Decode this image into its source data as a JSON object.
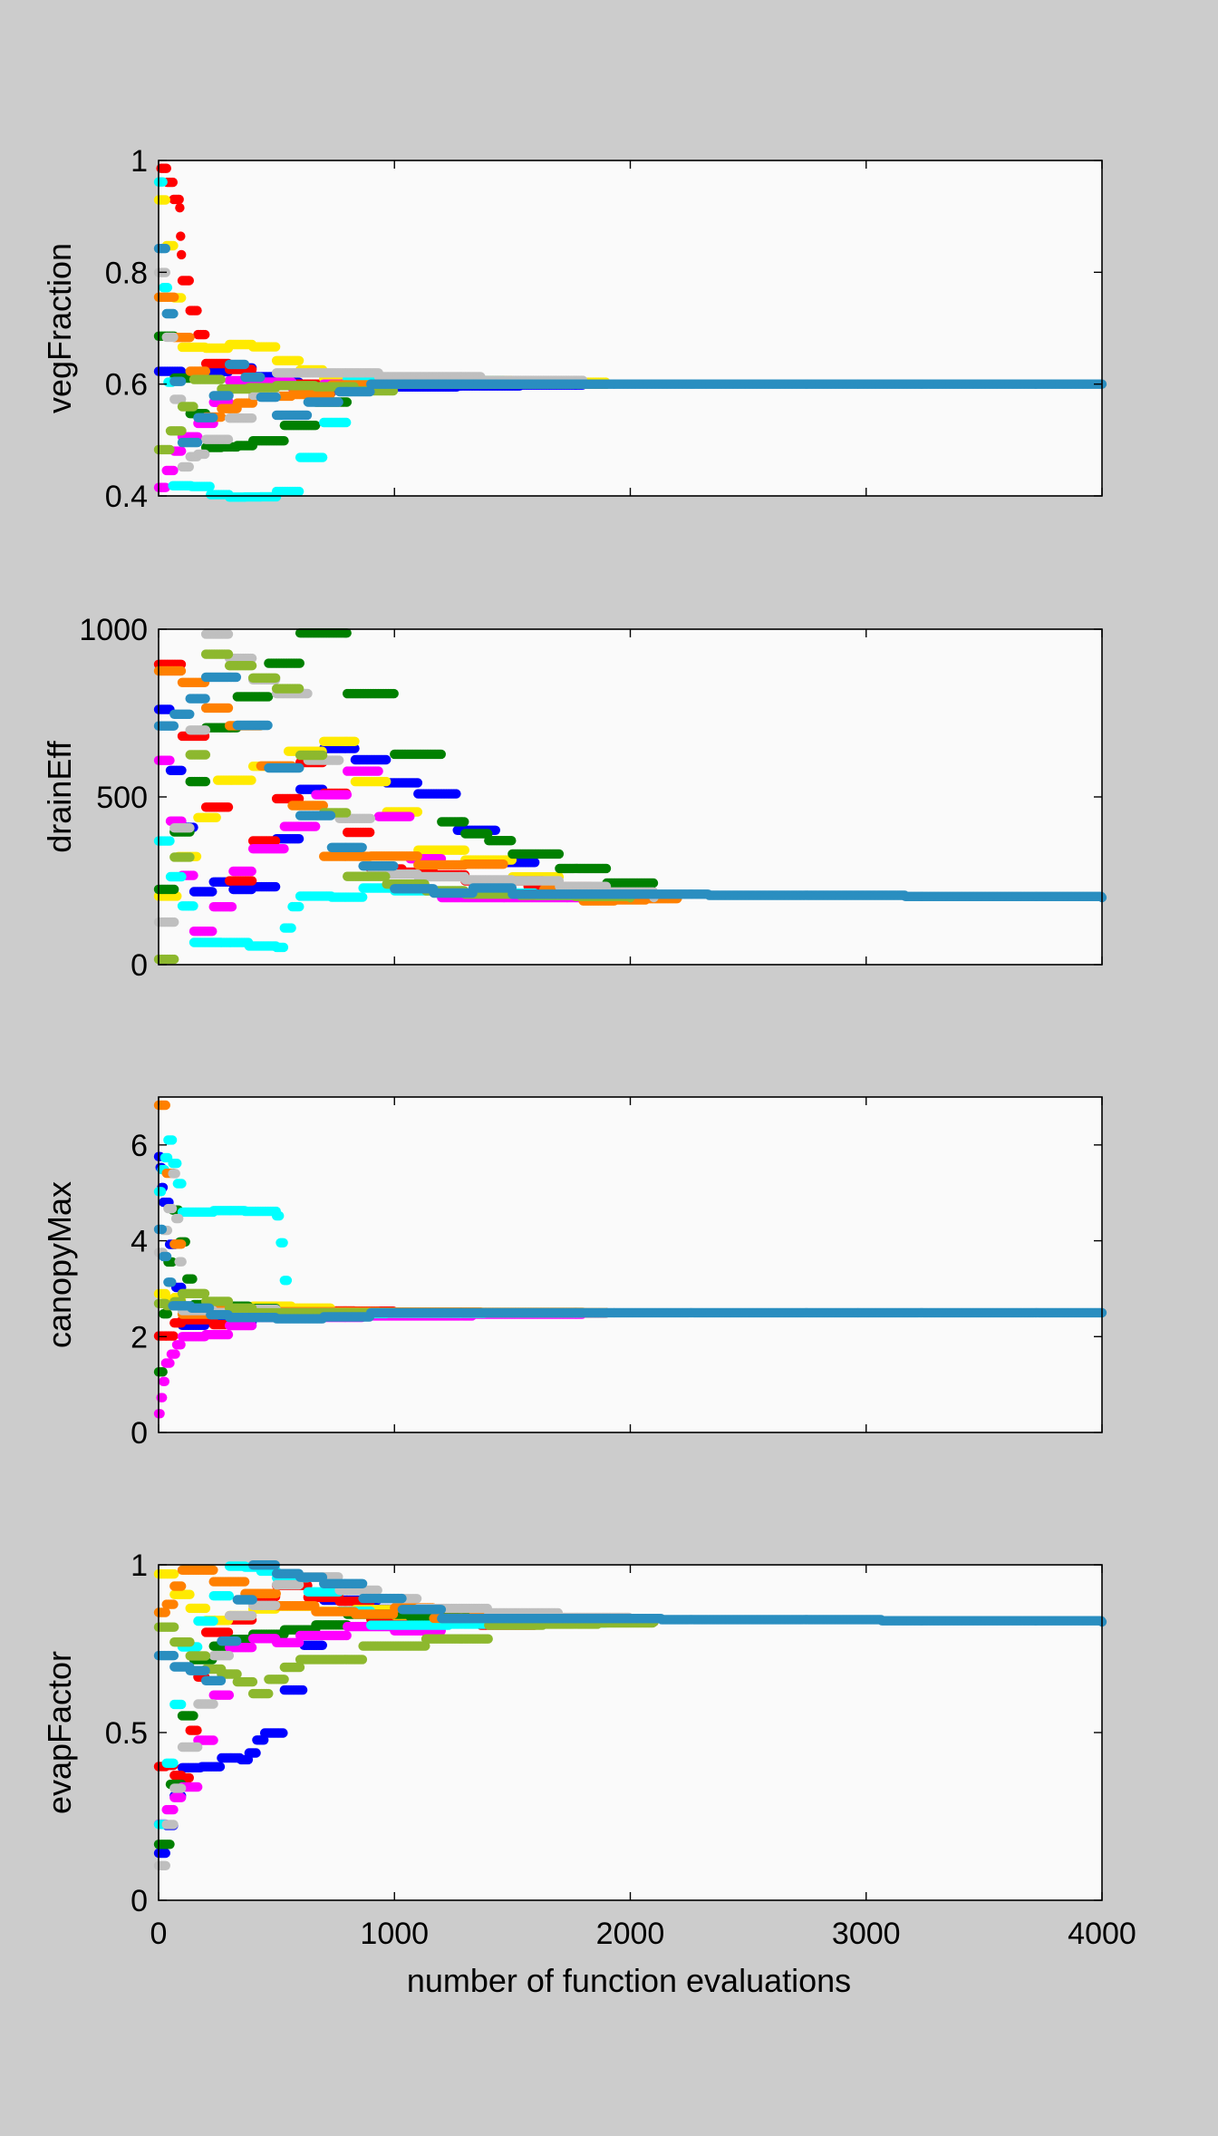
{
  "figure": {
    "background": "#cccccc",
    "axes_background": "#fafafa",
    "series_colors": [
      "#0000ff",
      "#ff0000",
      "#ffea00",
      "#008000",
      "#ff00ff",
      "#00ffff",
      "#ff8000",
      "#bfbfbf",
      "#8db82e",
      "#2a8ec0"
    ]
  },
  "chart_data": [
    {
      "type": "scatter",
      "ylabel": "vegFraction",
      "xlim": [
        0,
        4000
      ],
      "ylim": [
        0.4,
        1
      ],
      "xticks": [
        0,
        1000,
        2000,
        3000,
        4000
      ],
      "yticks": [
        0.4,
        0.6,
        0.8,
        1
      ],
      "yticklabels": [
        "0.4",
        "0.6",
        "0.8",
        "1"
      ],
      "show_xticklabels": false,
      "converged_value": 0.6,
      "convergence_evaluation": 1900,
      "series": [
        {
          "values": [
            [
              0,
              0.62
            ],
            [
              300,
              0.62
            ],
            [
              600,
              0.59
            ],
            [
              1000,
              0.595
            ],
            [
              1800,
              0.6
            ]
          ]
        },
        {
          "values": [
            [
              10,
              0.98
            ],
            [
              90,
              0.91
            ],
            [
              100,
              0.79
            ],
            [
              200,
              0.63
            ],
            [
              500,
              0.6
            ],
            [
              1800,
              0.6
            ]
          ]
        },
        {
          "values": [
            [
              0,
              0.93
            ],
            [
              100,
              0.67
            ],
            [
              400,
              0.66
            ],
            [
              700,
              0.61
            ],
            [
              1900,
              0.6
            ]
          ]
        },
        {
          "values": [
            [
              0,
              0.68
            ],
            [
              200,
              0.49
            ],
            [
              400,
              0.49
            ],
            [
              800,
              0.6
            ],
            [
              1800,
              0.6
            ]
          ]
        },
        {
          "values": [
            [
              0,
              0.42
            ],
            [
              100,
              0.5
            ],
            [
              300,
              0.6
            ],
            [
              700,
              0.6
            ],
            [
              1800,
              0.6
            ]
          ]
        },
        {
          "values": [
            [
              0,
              0.96
            ],
            [
              60,
              0.42
            ],
            [
              300,
              0.4
            ],
            [
              500,
              0.4
            ],
            [
              800,
              0.61
            ],
            [
              1800,
              0.6
            ]
          ]
        },
        {
          "values": [
            [
              0,
              0.76
            ],
            [
              200,
              0.55
            ],
            [
              400,
              0.58
            ],
            [
              900,
              0.6
            ],
            [
              1900,
              0.6
            ]
          ]
        },
        {
          "values": [
            [
              0,
              0.8
            ],
            [
              100,
              0.45
            ],
            [
              200,
              0.5
            ],
            [
              500,
              0.62
            ],
            [
              1800,
              0.6
            ]
          ]
        },
        {
          "values": [
            [
              0,
              0.48
            ],
            [
              150,
              0.6
            ],
            [
              500,
              0.59
            ],
            [
              1000,
              0.6
            ],
            [
              1900,
              0.6
            ]
          ]
        },
        {
          "values": [
            [
              0,
              0.84
            ],
            [
              100,
              0.49
            ],
            [
              300,
              0.63
            ],
            [
              500,
              0.55
            ],
            [
              900,
              0.6
            ],
            [
              4000,
              0.6
            ]
          ]
        }
      ]
    },
    {
      "type": "scatter",
      "ylabel": "drainEff",
      "xlim": [
        0,
        4000
      ],
      "ylim": [
        0,
        1000
      ],
      "xticks": [
        0,
        1000,
        2000,
        3000,
        4000
      ],
      "yticks": [
        0,
        500,
        1000
      ],
      "yticklabels": [
        "0",
        "500",
        "1000"
      ],
      "show_xticklabels": false,
      "converged_value": 200,
      "convergence_evaluation": 2500,
      "series": [
        {
          "values": [
            [
              0,
              750
            ],
            [
              150,
              230
            ],
            [
              400,
              240
            ],
            [
              700,
              650
            ],
            [
              1100,
              500
            ],
            [
              1600,
              210
            ],
            [
              2200,
              200
            ]
          ]
        },
        {
          "values": [
            [
              0,
              910
            ],
            [
              300,
              240
            ],
            [
              600,
              600
            ],
            [
              900,
              300
            ],
            [
              1300,
              250
            ],
            [
              2100,
              200
            ]
          ]
        },
        {
          "values": [
            [
              0,
              200
            ],
            [
              250,
              550
            ],
            [
              700,
              660
            ],
            [
              1100,
              350
            ],
            [
              1700,
              220
            ],
            [
              2200,
              200
            ]
          ]
        },
        {
          "values": [
            [
              0,
              230
            ],
            [
              200,
              710
            ],
            [
              600,
              1000
            ],
            [
              1200,
              420
            ],
            [
              1500,
              330
            ],
            [
              2100,
              200
            ]
          ]
        },
        {
          "values": [
            [
              0,
              600
            ],
            [
              150,
              100
            ],
            [
              400,
              350
            ],
            [
              800,
              580
            ],
            [
              1200,
              200
            ],
            [
              2000,
              200
            ]
          ]
        },
        {
          "values": [
            [
              0,
              380
            ],
            [
              150,
              60
            ],
            [
              500,
              60
            ],
            [
              600,
              210
            ],
            [
              1000,
              220
            ],
            [
              1900,
              200
            ]
          ]
        },
        {
          "values": [
            [
              0,
              880
            ],
            [
              300,
              720
            ],
            [
              700,
              330
            ],
            [
              1300,
              290
            ],
            [
              1800,
              190
            ],
            [
              2200,
              200
            ]
          ]
        },
        {
          "values": [
            [
              0,
              120
            ],
            [
              200,
              980
            ],
            [
              500,
              800
            ],
            [
              900,
              270
            ],
            [
              1500,
              250
            ],
            [
              2100,
              200
            ]
          ]
        },
        {
          "values": [
            [
              0,
              10
            ],
            [
              200,
              930
            ],
            [
              500,
              820
            ],
            [
              800,
              250
            ],
            [
              1300,
              210
            ],
            [
              2000,
              200
            ]
          ]
        },
        {
          "values": [
            [
              0,
              700
            ],
            [
              200,
              860
            ],
            [
              600,
              430
            ],
            [
              1000,
              230
            ],
            [
              1500,
              210
            ],
            [
              4000,
              200
            ]
          ]
        }
      ]
    },
    {
      "type": "scatter",
      "ylabel": "canopyMax",
      "xlim": [
        0,
        4000
      ],
      "ylim": [
        0,
        7
      ],
      "xticks": [
        0,
        1000,
        2000,
        3000,
        4000
      ],
      "yticks": [
        0,
        2,
        4,
        6
      ],
      "yticklabels": [
        "0",
        "2",
        "4",
        "6"
      ],
      "show_xticklabels": false,
      "converged_value": 2.5,
      "convergence_evaluation": 2000,
      "series": [
        {
          "values": [
            [
              0,
              5.8
            ],
            [
              20,
              4.7
            ],
            [
              100,
              2.2
            ],
            [
              400,
              2.4
            ],
            [
              900,
              2.48
            ],
            [
              1900,
              2.5
            ]
          ]
        },
        {
          "values": [
            [
              0,
              2.0
            ],
            [
              100,
              2.3
            ],
            [
              500,
              2.45
            ],
            [
              1000,
              2.5
            ],
            [
              1900,
              2.5
            ]
          ]
        },
        {
          "values": [
            [
              0,
              2.8
            ],
            [
              100,
              2.7
            ],
            [
              400,
              2.55
            ],
            [
              900,
              2.5
            ],
            [
              1900,
              2.5
            ]
          ]
        },
        {
          "values": [
            [
              0,
              1.3
            ],
            [
              60,
              4.6
            ],
            [
              150,
              2.6
            ],
            [
              500,
              2.5
            ],
            [
              1800,
              2.5
            ]
          ]
        },
        {
          "values": [
            [
              0,
              0.45
            ],
            [
              30,
              1.5
            ],
            [
              100,
              2.0
            ],
            [
              400,
              2.4
            ],
            [
              1800,
              2.5
            ]
          ]
        },
        {
          "values": [
            [
              0,
              5.0
            ],
            [
              40,
              6.2
            ],
            [
              100,
              4.6
            ],
            [
              500,
              4.6
            ],
            [
              550,
              2.48
            ],
            [
              1800,
              2.5
            ]
          ]
        },
        {
          "values": [
            [
              0,
              6.8
            ],
            [
              100,
              2.55
            ],
            [
              500,
              2.52
            ],
            [
              1800,
              2.5
            ]
          ]
        },
        {
          "values": [
            [
              0,
              3.7
            ],
            [
              60,
              5.3
            ],
            [
              100,
              2.6
            ],
            [
              500,
              2.5
            ],
            [
              1800,
              2.5
            ]
          ]
        },
        {
          "values": [
            [
              0,
              2.6
            ],
            [
              100,
              2.8
            ],
            [
              400,
              2.5
            ],
            [
              1800,
              2.5
            ]
          ]
        },
        {
          "values": [
            [
              0,
              4.2
            ],
            [
              60,
              2.6
            ],
            [
              300,
              2.45
            ],
            [
              900,
              2.5
            ],
            [
              4000,
              2.5
            ]
          ]
        }
      ]
    },
    {
      "type": "scatter",
      "ylabel": "evapFactor",
      "xlabel": "number of function evaluations",
      "xlim": [
        0,
        4000
      ],
      "ylim": [
        0,
        1
      ],
      "xticks": [
        0,
        1000,
        2000,
        3000,
        4000
      ],
      "xticklabels": [
        "0",
        "1000",
        "2000",
        "3000",
        "4000"
      ],
      "yticks": [
        0,
        0.5,
        1
      ],
      "yticklabels": [
        "0",
        "0.5",
        "1"
      ],
      "show_xticklabels": true,
      "converged_value": 0.83,
      "convergence_evaluation": 2300,
      "series": [
        {
          "values": [
            [
              0,
              0.13
            ],
            [
              100,
              0.41
            ],
            [
              350,
              0.41
            ],
            [
              450,
              0.49
            ],
            [
              700,
              0.88
            ],
            [
              1400,
              0.83
            ],
            [
              2100,
              0.83
            ]
          ]
        },
        {
          "values": [
            [
              0,
              0.41
            ],
            [
              100,
              0.36
            ],
            [
              200,
              0.8
            ],
            [
              500,
              0.95
            ],
            [
              900,
              0.84
            ],
            [
              1600,
              0.83
            ],
            [
              2100,
              0.83
            ]
          ]
        },
        {
          "values": [
            [
              0,
              0.96
            ],
            [
              200,
              0.82
            ],
            [
              500,
              0.88
            ],
            [
              1000,
              0.85
            ],
            [
              1900,
              0.83
            ]
          ]
        },
        {
          "values": [
            [
              0,
              0.18
            ],
            [
              150,
              0.72
            ],
            [
              400,
              0.8
            ],
            [
              800,
              0.85
            ],
            [
              1600,
              0.83
            ],
            [
              2100,
              0.83
            ]
          ]
        },
        {
          "values": [
            [
              0,
              0.24
            ],
            [
              100,
              0.35
            ],
            [
              300,
              0.76
            ],
            [
              600,
              0.79
            ],
            [
              1200,
              0.83
            ],
            [
              2000,
              0.83
            ]
          ]
        },
        {
          "values": [
            [
              0,
              0.22
            ],
            [
              100,
              0.77
            ],
            [
              300,
              0.99
            ],
            [
              500,
              0.97
            ],
            [
              900,
              0.82
            ],
            [
              1900,
              0.83
            ]
          ]
        },
        {
          "values": [
            [
              0,
              0.85
            ],
            [
              100,
              0.99
            ],
            [
              500,
              0.88
            ],
            [
              1000,
              0.86
            ],
            [
              1500,
              0.84
            ],
            [
              2100,
              0.83
            ]
          ]
        },
        {
          "values": [
            [
              0,
              0.09
            ],
            [
              100,
              0.47
            ],
            [
              300,
              0.84
            ],
            [
              600,
              0.97
            ],
            [
              1100,
              0.87
            ],
            [
              2000,
              0.83
            ]
          ]
        },
        {
          "values": [
            [
              0,
              0.81
            ],
            [
              200,
              0.69
            ],
            [
              400,
              0.63
            ],
            [
              600,
              0.71
            ],
            [
              1400,
              0.82
            ],
            [
              2100,
              0.83
            ]
          ]
        },
        {
          "values": [
            [
              0,
              0.73
            ],
            [
              200,
              0.66
            ],
            [
              400,
              1.0
            ],
            [
              700,
              0.93
            ],
            [
              1200,
              0.84
            ],
            [
              4000,
              0.83
            ]
          ]
        }
      ]
    }
  ]
}
